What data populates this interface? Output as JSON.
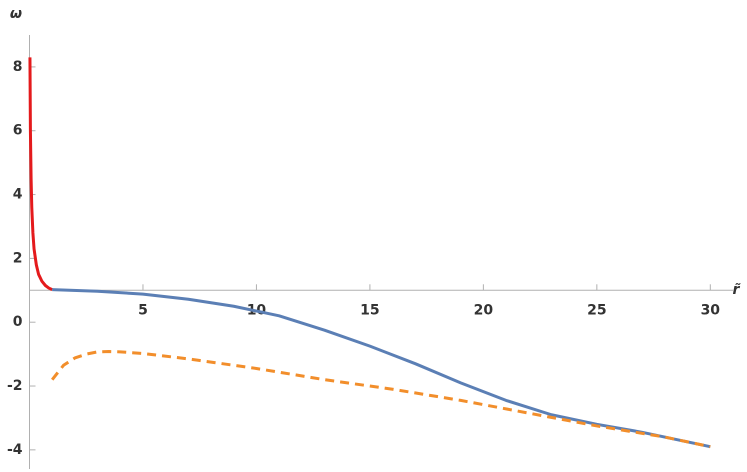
{
  "chart_data": {
    "type": "line",
    "xlabel": "r̃",
    "ylabel": "ω",
    "xlim": [
      0,
      31
    ],
    "ylim": [
      -4.6,
      9.0
    ],
    "xticks": [
      5,
      10,
      15,
      20,
      25,
      30
    ],
    "yticks": [
      -4,
      -2,
      0,
      2,
      4,
      6,
      8
    ],
    "origin": [
      0,
      1
    ],
    "series": [
      {
        "color": "#e41a1c",
        "dashed": false,
        "x": [
          0.02,
          0.04,
          0.07,
          0.1,
          0.15,
          0.2,
          0.3,
          0.4,
          0.55,
          0.7,
          0.85,
          1.0
        ],
        "values": [
          8.3,
          6.0,
          4.5,
          3.6,
          2.8,
          2.3,
          1.8,
          1.5,
          1.28,
          1.15,
          1.07,
          1.02
        ]
      },
      {
        "color": "#5b7fb5",
        "dashed": false,
        "x": [
          1,
          3,
          5,
          7,
          9,
          11,
          13,
          15,
          17,
          19,
          21,
          23,
          25,
          27,
          30
        ],
        "values": [
          1.02,
          0.97,
          0.88,
          0.72,
          0.5,
          0.2,
          -0.25,
          -0.75,
          -1.3,
          -1.9,
          -2.45,
          -2.9,
          -3.2,
          -3.45,
          -3.9
        ]
      },
      {
        "color": "#f28e2b",
        "dashed": true,
        "x": [
          1,
          1.5,
          2,
          2.5,
          3,
          3.5,
          4,
          5,
          7,
          10,
          13,
          16,
          19,
          22,
          25,
          28,
          30
        ],
        "values": [
          -1.8,
          -1.35,
          -1.12,
          -1.0,
          -0.93,
          -0.92,
          -0.93,
          -0.98,
          -1.15,
          -1.45,
          -1.8,
          -2.1,
          -2.45,
          -2.85,
          -3.25,
          -3.6,
          -3.9
        ]
      }
    ]
  }
}
